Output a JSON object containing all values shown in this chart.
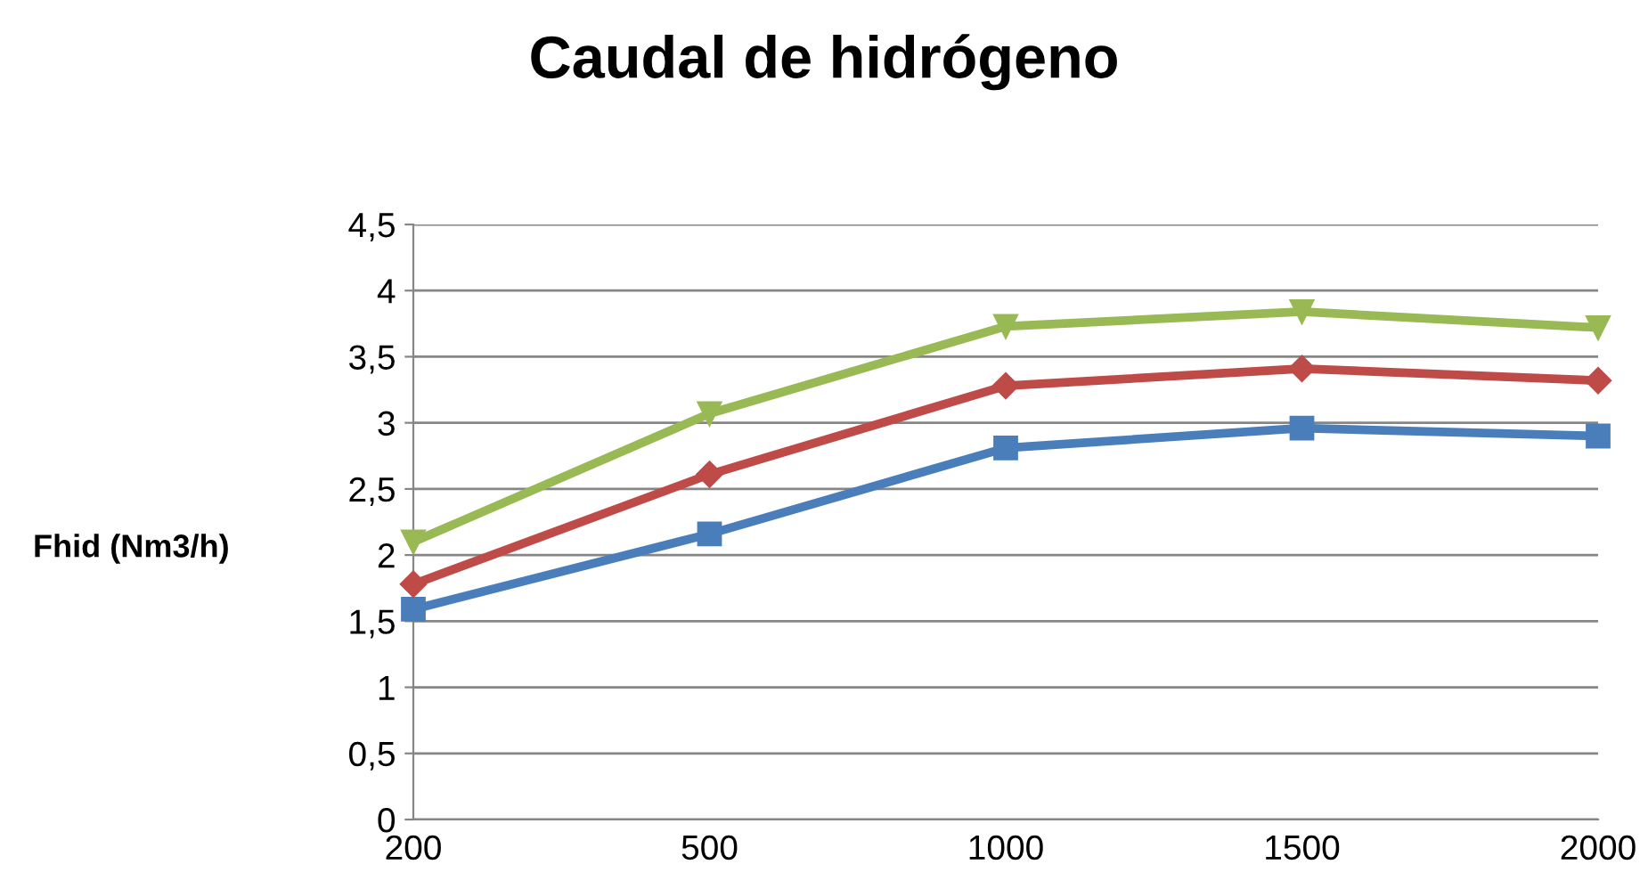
{
  "chart_data": {
    "type": "line",
    "title": "Caudal de hidrógeno",
    "ylabel": "Fhid (Nm3/h)",
    "categories": [
      "200",
      "500",
      "1000",
      "1500",
      "2000"
    ],
    "series": [
      {
        "color": "#4a7ebb",
        "marker": "square",
        "values": [
          1.59,
          2.16,
          2.81,
          2.96,
          2.9
        ]
      },
      {
        "color": "#be4b48",
        "marker": "diamond",
        "values": [
          1.78,
          2.61,
          3.28,
          3.41,
          3.32
        ]
      },
      {
        "color": "#98b954",
        "marker": "triangle",
        "values": [
          2.1,
          3.07,
          3.73,
          3.84,
          3.72
        ]
      }
    ],
    "ylim": [
      0,
      4.5
    ],
    "yticks": [
      0,
      {
        "value": 0.5,
        "label": "0,5"
      },
      1,
      {
        "value": 1.5,
        "label": "1,5"
      },
      2,
      {
        "value": 2.5,
        "label": "2,5"
      },
      3,
      {
        "value": 3.5,
        "label": "3,5"
      },
      4,
      {
        "value": 4.5,
        "label": "4,5"
      }
    ],
    "grid": "y",
    "line_style": "solid"
  }
}
